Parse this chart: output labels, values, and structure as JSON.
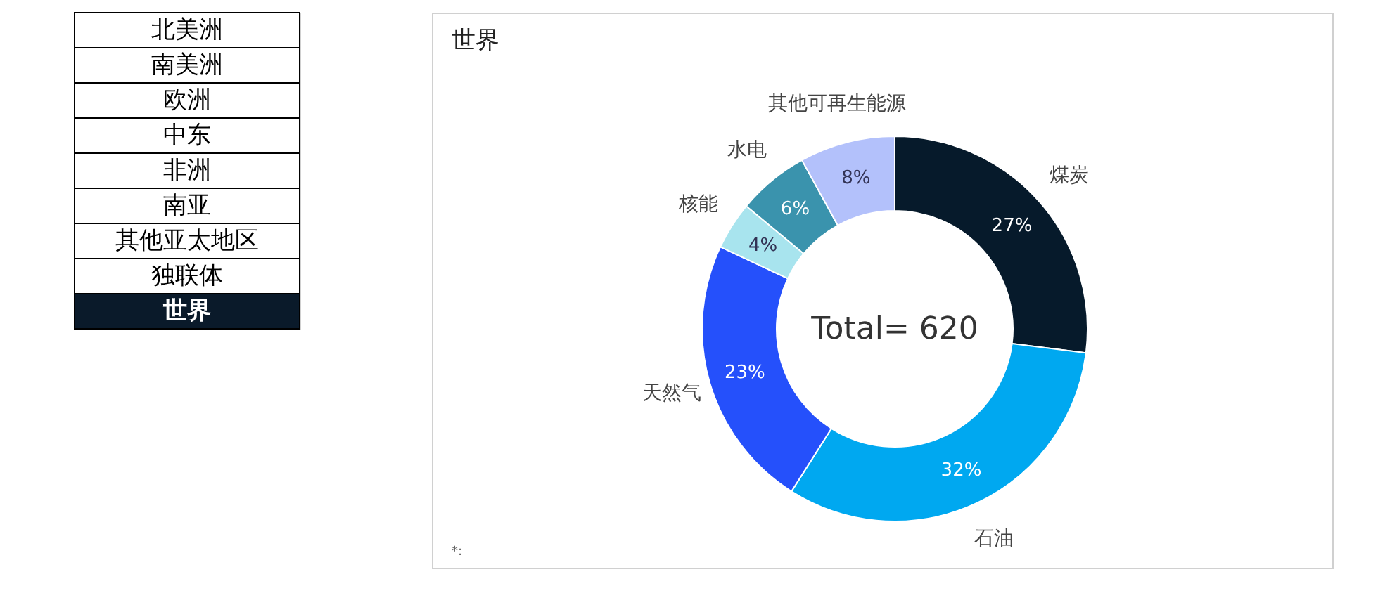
{
  "chart_data": [
    {
      "type": "other",
      "categories": [
        "北美洲",
        "南美洲",
        "欧洲",
        "中东",
        "非洲",
        "南亚",
        "其他亚太地区",
        "独联体",
        "世界"
      ],
      "colors": [
        "#ffffff",
        "#ffffff",
        "#ffffff",
        "#ffffff",
        "#ffffff",
        "#ffffff",
        "#ffffff",
        "#ffffff",
        "#0a1a2a"
      ]
    },
    {
      "type": "donut",
      "title": "世界",
      "categories": [
        "煤炭",
        "石油",
        "天然气",
        "核能",
        "水电",
        "其他可再生能源"
      ],
      "values": [
        27,
        32,
        23,
        4,
        6,
        8
      ],
      "value_labels": [
        "27%",
        "32%",
        "23%",
        "4%",
        "6%",
        "8%"
      ],
      "colors": [
        "#061a2b",
        "#00a8f0",
        "#2550fb",
        "#a8e4ee",
        "#3a93ad",
        "#b3c1fb"
      ],
      "annotations": [
        "Total= 620",
        "*:"
      ],
      "legend": false
    }
  ]
}
